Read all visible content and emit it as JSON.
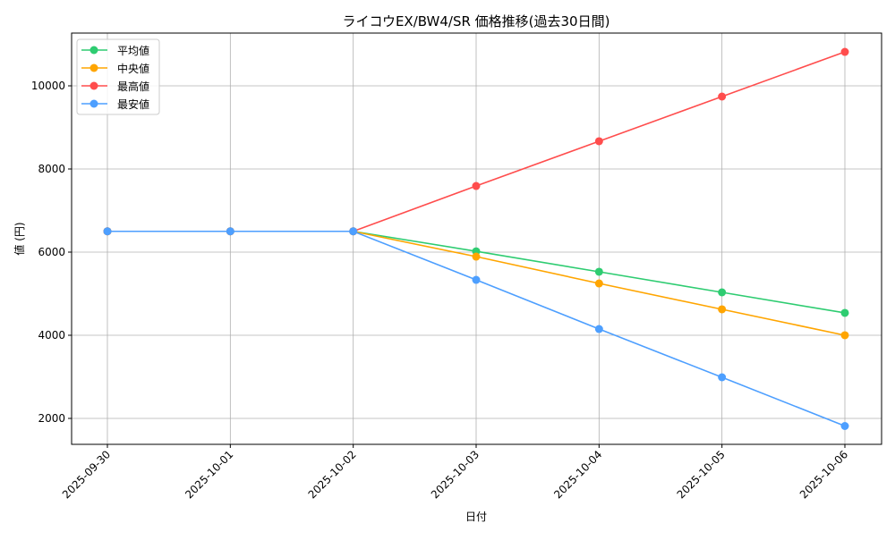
{
  "chart_data": {
    "type": "line",
    "title": "ライコウEX/BW4/SR 価格推移(過去30日間)",
    "xlabel": "日付",
    "ylabel": "値 (円)",
    "categories": [
      "2025-09-30",
      "2025-10-01",
      "2025-10-02",
      "2025-10-03",
      "2025-10-04",
      "2025-10-05",
      "2025-10-06"
    ],
    "ylim": [
      1376,
      11269
    ],
    "yticks": [
      2000,
      4000,
      6000,
      8000,
      10000
    ],
    "grid": true,
    "legend_position": "top-left",
    "series": [
      {
        "name": "平均値",
        "color": "#2ecc71",
        "values": [
          6500,
          6500,
          6500,
          6020,
          5527,
          5032,
          4538
        ]
      },
      {
        "name": "中央値",
        "color": "#ffa500",
        "values": [
          6500,
          6500,
          6500,
          5892,
          5247,
          4624,
          4000
        ]
      },
      {
        "name": "最高値",
        "color": "#ff4d4d",
        "values": [
          6500,
          6500,
          6500,
          7591,
          8667,
          9742,
          10817
        ]
      },
      {
        "name": "最安値",
        "color": "#4d9fff",
        "values": [
          6500,
          6500,
          6500,
          5333,
          4150,
          2989,
          1817
        ]
      }
    ]
  }
}
